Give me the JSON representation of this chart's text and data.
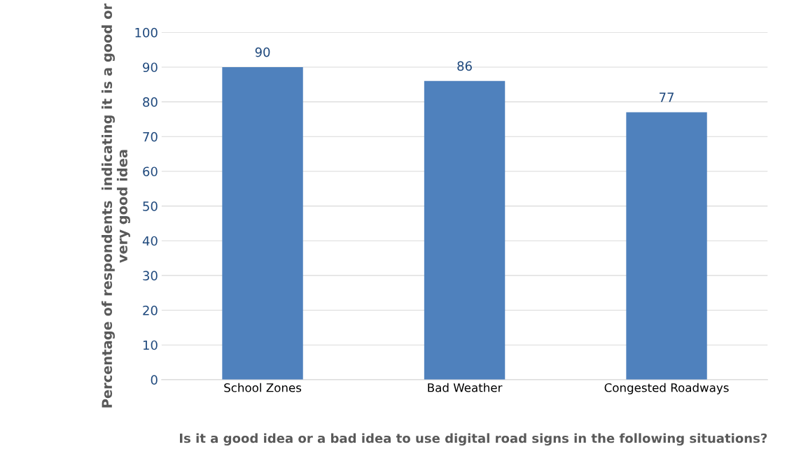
{
  "chart_data": {
    "type": "bar",
    "categories": [
      "School Zones",
      "Bad Weather",
      "Congested Roadways"
    ],
    "values": [
      90,
      86,
      77
    ],
    "color": "#4f81bd",
    "data_labels": true,
    "ylabel": "Percentage of respondents  indicating it is a good or very good idea",
    "xlabel": "Is it a good idea or a bad idea to use digital road signs in the following situations?",
    "ylim": [
      0,
      100
    ],
    "yticks": [
      0,
      10,
      20,
      30,
      40,
      50,
      60,
      70,
      80,
      90,
      100
    ],
    "grid": "y"
  }
}
